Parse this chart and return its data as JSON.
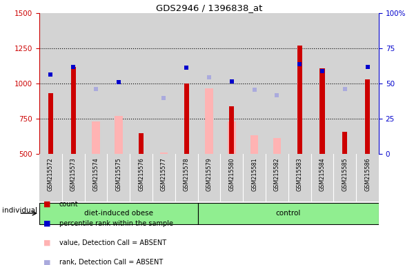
{
  "title": "GDS2946 / 1396838_at",
  "samples": [
    "GSM215572",
    "GSM215573",
    "GSM215574",
    "GSM215575",
    "GSM215576",
    "GSM215577",
    "GSM215578",
    "GSM215579",
    "GSM215580",
    "GSM215581",
    "GSM215582",
    "GSM215583",
    "GSM215584",
    "GSM215585",
    "GSM215586"
  ],
  "red_bars": [
    930,
    1120,
    null,
    null,
    648,
    null,
    1000,
    null,
    840,
    null,
    null,
    1270,
    1110,
    655,
    1030
  ],
  "pink_bars": [
    null,
    null,
    730,
    770,
    null,
    510,
    null,
    965,
    730,
    630,
    610,
    null,
    null,
    null,
    null
  ],
  "blue_squares": [
    1065,
    1120,
    null,
    1010,
    null,
    null,
    1115,
    null,
    1015,
    null,
    null,
    1135,
    1090,
    null,
    1120
  ],
  "lavender_squares": [
    null,
    null,
    960,
    null,
    null,
    895,
    null,
    1045,
    null,
    955,
    915,
    null,
    null,
    960,
    null
  ],
  "ylim_left": [
    500,
    1500
  ],
  "ylim_right": [
    0,
    100
  ],
  "yticks_left": [
    500,
    750,
    1000,
    1250,
    1500
  ],
  "yticks_right": [
    0,
    25,
    50,
    75,
    100
  ],
  "red_color": "#cc0000",
  "pink_color": "#ffb3b3",
  "blue_color": "#0000cc",
  "lavender_color": "#aaaadd",
  "bg_color": "#d3d3d3",
  "green_color": "#90EE90",
  "n_obese": 7,
  "n_control": 8,
  "red_bar_width": 0.22,
  "pink_bar_width": 0.35,
  "marker_size": 4.5
}
